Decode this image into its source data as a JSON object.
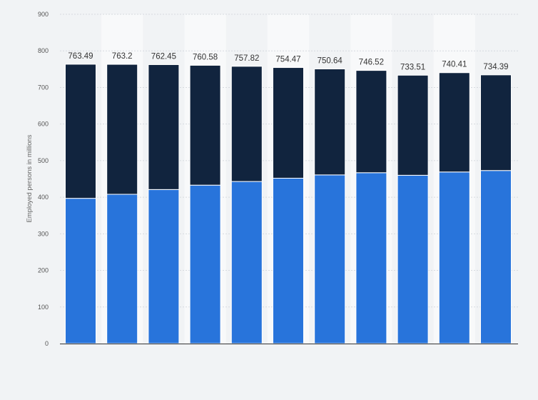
{
  "chart_data": {
    "type": "bar",
    "stacked": true,
    "title": "",
    "xlabel": "",
    "ylabel": "Employed persons in millions",
    "ylim": [
      0,
      900
    ],
    "yticks": [
      0,
      100,
      200,
      300,
      400,
      500,
      600,
      700,
      800,
      900
    ],
    "grid": true,
    "legend": "none",
    "categories": [
      "",
      "",
      "",
      "",
      "",
      "",
      "",
      "",
      "",
      "",
      ""
    ],
    "series": [
      {
        "color": "#2874db",
        "values": [
          397,
          408,
          421,
          433,
          443,
          452,
          461,
          467,
          460,
          469,
          473
        ]
      },
      {
        "color": "#11243e",
        "values": [
          366.49,
          355.2,
          341.45,
          327.58,
          314.82,
          302.47,
          289.64,
          279.52,
          273.51,
          271.41,
          261.39
        ]
      }
    ],
    "totals": [
      "763.49",
      "763.2",
      "762.45",
      "760.58",
      "757.82",
      "754.47",
      "750.64",
      "746.52",
      "733.51",
      "740.41",
      "734.39"
    ]
  }
}
